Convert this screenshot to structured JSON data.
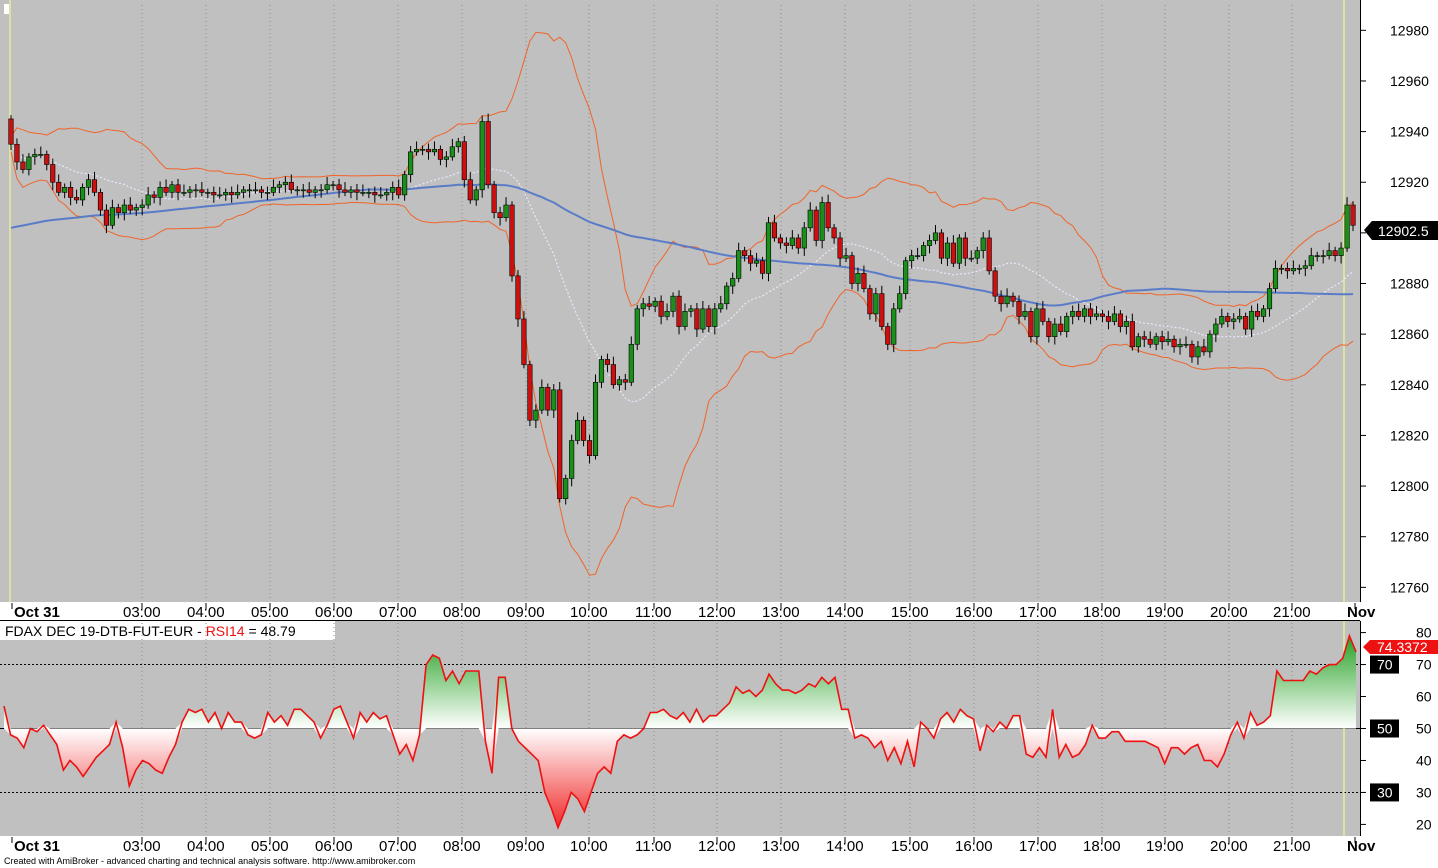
{
  "colors": {
    "background": "#c0c0c0",
    "bull_candle": "#1a8f1a",
    "bear_candle": "#cc1010",
    "bollinger": "#f0642a",
    "moving_average": "#5a7cc8",
    "dotted_ma": "#e8e8ff",
    "rsi_line": "#ee1111",
    "rsi_bull_fill": "#1e9e1e",
    "rsi_bear_fill": "#f03030",
    "last_price_marker": "#000000",
    "rsi_marker": "#ee1111"
  },
  "chart_data": [
    {
      "type": "candlestick",
      "symbol": "FDAX DEC 19-DTB-FUT-EUR",
      "y_ticks": [
        12760,
        12780,
        12800,
        12820,
        12840,
        12860,
        12880,
        12900,
        12920,
        12940,
        12960,
        12980
      ],
      "ylim": [
        12755,
        12990
      ],
      "last_price": "12902.5",
      "x_labels": [
        "Oct 31",
        "03:00",
        "04:00",
        "05:00",
        "06:00",
        "07:00",
        "08:00",
        "09:00",
        "10:00",
        "11:00",
        "12:00",
        "13:00",
        "14:00",
        "15:00",
        "16:00",
        "17:00",
        "18:00",
        "19:00",
        "20:00",
        "21:00",
        "Nov"
      ],
      "close": [
        12935,
        12928,
        12925,
        12930,
        12931,
        12931,
        12927,
        12920,
        12916,
        12918,
        12914,
        12913,
        12918,
        12921,
        12916,
        12909,
        12903,
        12910,
        12908,
        12911,
        12909,
        12910,
        12911,
        12915,
        12914,
        12918,
        12916,
        12919,
        12916,
        12916,
        12917,
        12917,
        12916,
        12916,
        12915,
        12915,
        12916,
        12915,
        12916,
        12917,
        12917,
        12917,
        12916,
        12916,
        12918,
        12919,
        12920,
        12917,
        12917,
        12917,
        12916,
        12917,
        12917,
        12919,
        12919,
        12917,
        12916,
        12917,
        12916,
        12916,
        12916,
        12915,
        12915,
        12916,
        12918,
        12915,
        12923,
        12932,
        12933,
        12933,
        12932,
        12933,
        12929,
        12930,
        12934,
        12936,
        12921,
        12913,
        12917,
        12944,
        12919,
        12908,
        12906,
        12911,
        12883,
        12866,
        12848,
        12826,
        12830,
        12839,
        12830,
        12838,
        12795,
        12803,
        12818,
        12826,
        12818,
        12812,
        12841,
        12850,
        12848,
        12840,
        12842,
        12841,
        12856,
        12870,
        12872,
        12871,
        12873,
        12867,
        12869,
        12875,
        12863,
        12869,
        12870,
        12862,
        12870,
        12863,
        12870,
        12872,
        12879,
        12882,
        12893,
        12891,
        12888,
        12889,
        12884,
        12904,
        12898,
        12896,
        12895,
        12898,
        12894,
        12902,
        12909,
        12897,
        12912,
        12902,
        12898,
        12890,
        12891,
        12880,
        12884,
        12878,
        12868,
        12876,
        12863,
        12856,
        12870,
        12876,
        12889,
        12891,
        12891,
        12895,
        12897,
        12900,
        12890,
        12896,
        12888,
        12898,
        12890,
        12890,
        12893,
        12898,
        12885,
        12875,
        12872,
        12875,
        12873,
        12867,
        12869,
        12859,
        12870,
        12865,
        12859,
        12864,
        12861,
        12867,
        12869,
        12867,
        12870,
        12867,
        12868,
        12867,
        12865,
        12868,
        12863,
        12865,
        12855,
        12859,
        12858,
        12856,
        12859,
        12857,
        12858,
        12855,
        12856,
        12856,
        12851,
        12855,
        12853,
        12860,
        12864,
        12867,
        12865,
        12866,
        12867,
        12862,
        12869,
        12867,
        12870,
        12878,
        12886,
        12886,
        12885,
        12886,
        12886,
        12887,
        12891,
        12891,
        12891,
        12893,
        12891,
        12894,
        12911,
        12903
      ],
      "ma_long_start": 12902,
      "ma_long_end": 12878
    },
    {
      "type": "line",
      "indicator": "RSI14",
      "title_symbol": "FDAX DEC 19-DTB-FUT-EUR",
      "title_indicator": "RSI14",
      "title_value": "48.79",
      "last_value": "74.3372",
      "y_ticks": [
        20,
        30,
        40,
        50,
        60,
        70,
        80
      ],
      "reference_levels": [
        "70",
        "50",
        "30"
      ],
      "ylim": [
        17,
        83
      ],
      "x_labels": [
        "Oct 31",
        "03:00",
        "04:00",
        "05:00",
        "06:00",
        "07:00",
        "08:00",
        "09:00",
        "10:00",
        "11:00",
        "12:00",
        "13:00",
        "14:00",
        "15:00",
        "16:00",
        "17:00",
        "18:00",
        "19:00",
        "20:00",
        "21:00",
        "Nov"
      ],
      "values": [
        57,
        48,
        47,
        44,
        50,
        49,
        51,
        48,
        45,
        37,
        40,
        38,
        35,
        38,
        41,
        43,
        45,
        52,
        44,
        32,
        37,
        40,
        39,
        37,
        36,
        41,
        45,
        52,
        56,
        55,
        56,
        52,
        55,
        50,
        55,
        52,
        52,
        48,
        47,
        48,
        55,
        52,
        54,
        51,
        56,
        56,
        54,
        52,
        47,
        51,
        56,
        57,
        52,
        47,
        55,
        52,
        55,
        53,
        54,
        48,
        42,
        45,
        40,
        48,
        70,
        73,
        72,
        65,
        68,
        64,
        68,
        68,
        68,
        46,
        36,
        66,
        66,
        50,
        46,
        44,
        42,
        40,
        30,
        25,
        19,
        24,
        30,
        28,
        24,
        30,
        36,
        38,
        36,
        46,
        48,
        47,
        48,
        50,
        55,
        55,
        56,
        54,
        53,
        55,
        52,
        56,
        52,
        54,
        54,
        56,
        58,
        63,
        61,
        62,
        60,
        62,
        67,
        64,
        62,
        62,
        61,
        62,
        64,
        63,
        66,
        64,
        66,
        56,
        56,
        47,
        48,
        47,
        44,
        46,
        40,
        44,
        39,
        46,
        38,
        52,
        50,
        47,
        53,
        55,
        52,
        56,
        54,
        53,
        43,
        51,
        49,
        52,
        50,
        54,
        54,
        42,
        41,
        44,
        41,
        56,
        41,
        45,
        41,
        42,
        45,
        51,
        47,
        47,
        49,
        49,
        46,
        46,
        46,
        46,
        45,
        44,
        39,
        44,
        44,
        42,
        44,
        45,
        40,
        40,
        38,
        42,
        48,
        52,
        47,
        55,
        51,
        52,
        54,
        68,
        65,
        65,
        65,
        65,
        68,
        67,
        69,
        70,
        70,
        72,
        79,
        74
      ]
    }
  ],
  "footer_text": "Created with AmiBroker - advanced charting and technical analysis software. http://www.amibroker.com"
}
